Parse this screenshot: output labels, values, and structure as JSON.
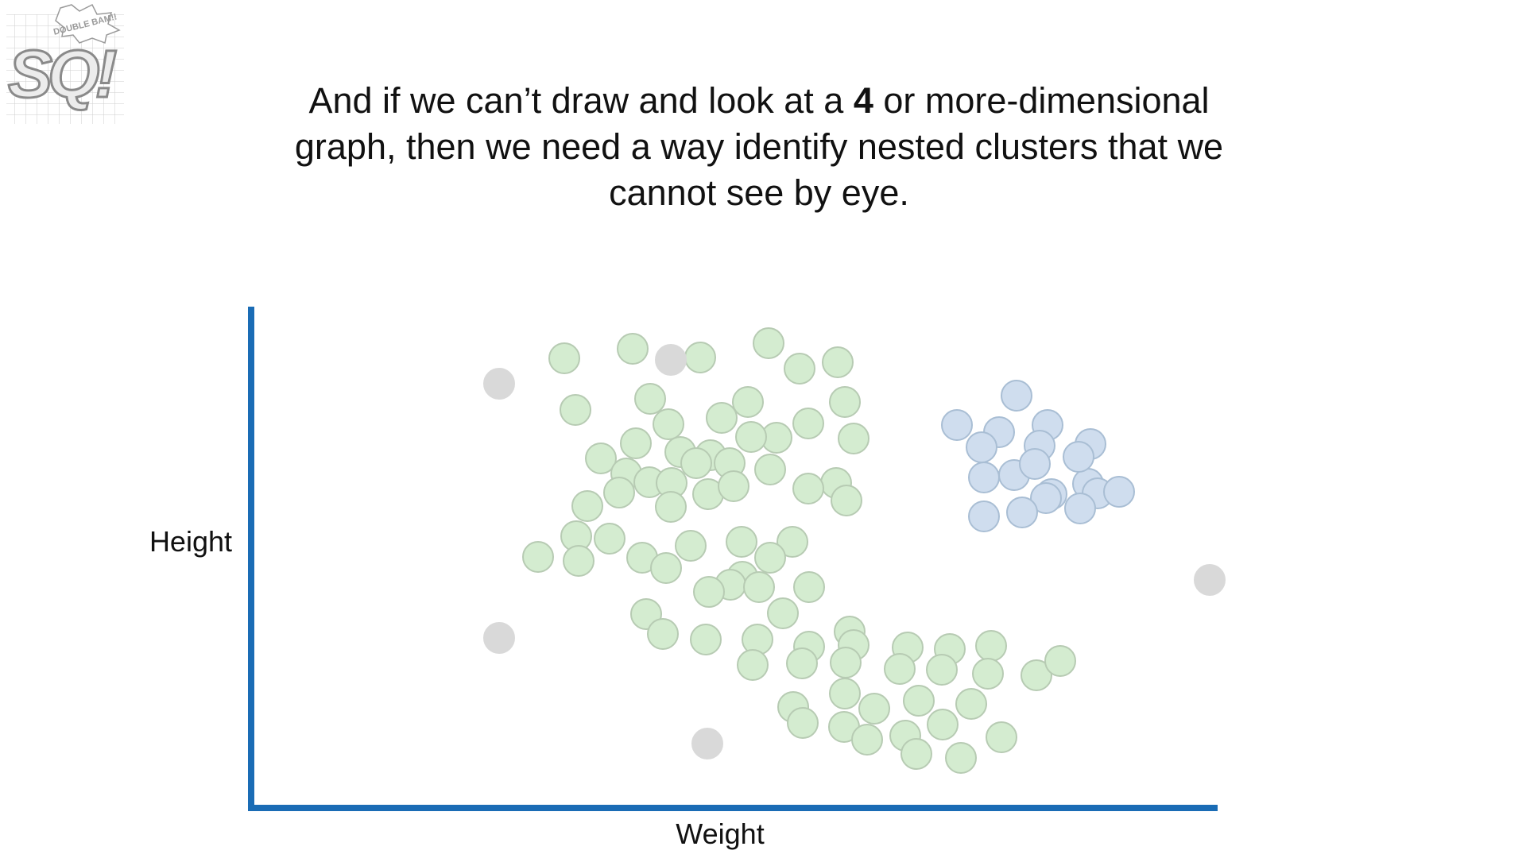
{
  "logo": {
    "letters": "SQ!",
    "burst_text": "DOUBLE BAM!!"
  },
  "caption": {
    "part1": "And if we can’t draw and look at a ",
    "bold": "4",
    "part2": " or more-dimensional graph, then we need a way identify nested clusters that we cannot see by eye."
  },
  "colors": {
    "axis": "#1a6cb5",
    "green_fill": "#d4ecd0",
    "green_stroke": "#b7cbb3",
    "blue_fill": "#cfddee",
    "blue_stroke": "#a9bed4",
    "gray_fill": "#d9d9d9",
    "gray_stroke": "#d9d9d9"
  },
  "chart_data": {
    "type": "scatter",
    "title": "",
    "xlabel": "Weight",
    "ylabel": "Height",
    "xlim": [
      0,
      1220
    ],
    "ylim": [
      0,
      630
    ],
    "ticks": false,
    "grid": false,
    "series": [
      {
        "color": "green",
        "points": [
          [
            394,
            566
          ],
          [
            480,
            578
          ],
          [
            565,
            567
          ],
          [
            651,
            585
          ],
          [
            738,
            561
          ],
          [
            690,
            553
          ],
          [
            408,
            501
          ],
          [
            502,
            515
          ],
          [
            525,
            483
          ],
          [
            592,
            491
          ],
          [
            625,
            511
          ],
          [
            661,
            466
          ],
          [
            747,
            511
          ],
          [
            440,
            440
          ],
          [
            484,
            459
          ],
          [
            578,
            444
          ],
          [
            629,
            467
          ],
          [
            701,
            484
          ],
          [
            758,
            465
          ],
          [
            472,
            421
          ],
          [
            540,
            448
          ],
          [
            602,
            434
          ],
          [
            560,
            434
          ],
          [
            653,
            426
          ],
          [
            501,
            410
          ],
          [
            575,
            395
          ],
          [
            736,
            409
          ],
          [
            463,
            397
          ],
          [
            529,
            409
          ],
          [
            607,
            405
          ],
          [
            701,
            402
          ],
          [
            749,
            387
          ],
          [
            409,
            342
          ],
          [
            423,
            380
          ],
          [
            528,
            379
          ],
          [
            451,
            339
          ],
          [
            617,
            335
          ],
          [
            681,
            335
          ],
          [
            553,
            330
          ],
          [
            492,
            315
          ],
          [
            412,
            311
          ],
          [
            522,
            302
          ],
          [
            653,
            315
          ],
          [
            618,
            291
          ],
          [
            702,
            278
          ],
          [
            361,
            316
          ],
          [
            603,
            281
          ],
          [
            669,
            245
          ],
          [
            497,
            244
          ],
          [
            576,
            272
          ],
          [
            639,
            278
          ],
          [
            518,
            219
          ],
          [
            572,
            212
          ],
          [
            637,
            212
          ],
          [
            702,
            203
          ],
          [
            753,
            222
          ],
          [
            758,
            205
          ],
          [
            826,
            202
          ],
          [
            879,
            200
          ],
          [
            931,
            204
          ],
          [
            631,
            180
          ],
          [
            693,
            182
          ],
          [
            748,
            183
          ],
          [
            816,
            175
          ],
          [
            869,
            174
          ],
          [
            927,
            169
          ],
          [
            988,
            167
          ],
          [
            1018,
            185
          ],
          [
            747,
            144
          ],
          [
            682,
            127
          ],
          [
            784,
            125
          ],
          [
            840,
            135
          ],
          [
            906,
            131
          ],
          [
            694,
            107
          ],
          [
            746,
            102
          ],
          [
            823,
            91
          ],
          [
            870,
            105
          ],
          [
            775,
            86
          ],
          [
            944,
            89
          ],
          [
            837,
            68
          ],
          [
            893,
            63
          ]
        ]
      },
      {
        "color": "blue",
        "points": [
          [
            963,
            519
          ],
          [
            888,
            482
          ],
          [
            941,
            473
          ],
          [
            1002,
            482
          ],
          [
            919,
            454
          ],
          [
            992,
            456
          ],
          [
            1056,
            458
          ],
          [
            1007,
            395
          ],
          [
            1053,
            408
          ],
          [
            922,
            416
          ],
          [
            960,
            419
          ],
          [
            986,
            433
          ],
          [
            1041,
            442
          ],
          [
            1000,
            390
          ],
          [
            1065,
            396
          ],
          [
            922,
            367
          ],
          [
            970,
            372
          ],
          [
            1043,
            377
          ],
          [
            1092,
            398
          ]
        ]
      },
      {
        "color": "gray",
        "points": [
          [
            528,
            564
          ],
          [
            312,
            534
          ],
          [
            1206,
            287
          ],
          [
            312,
            214
          ],
          [
            574,
            81
          ]
        ]
      }
    ]
  }
}
